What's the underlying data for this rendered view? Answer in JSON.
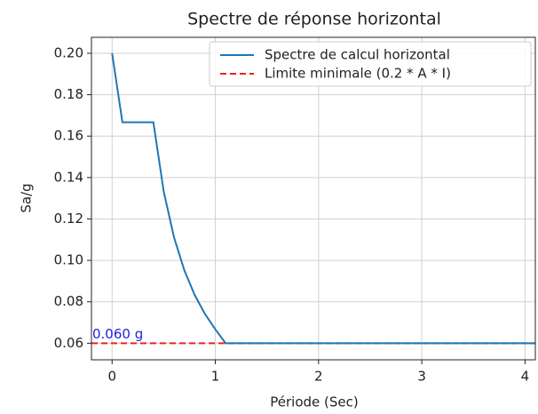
{
  "chart_data": {
    "type": "line",
    "title": "Spectre de réponse horizontal",
    "xlabel": "Période (Sec)",
    "ylabel": "Sa/g",
    "x": [
      0,
      0.1,
      0.4,
      0.5,
      0.6,
      0.7,
      0.8,
      0.9,
      1.0,
      1.1,
      4.1
    ],
    "series": [
      {
        "name": "Spectre de calcul horizontal",
        "color": "#1f77b4",
        "values": [
          0.2,
          0.1667,
          0.1667,
          0.1333,
          0.1111,
          0.0952,
          0.0833,
          0.0741,
          0.0667,
          0.06,
          0.06
        ]
      }
    ],
    "reference_line": {
      "name": "Limite minimale (0.2 * A * I)",
      "value": 0.06,
      "color": "#e8251f"
    },
    "annotation": {
      "text": "0.060 g",
      "x": -0.2,
      "y": 0.06,
      "color": "#2020e0"
    },
    "xlim": [
      -0.2,
      4.1
    ],
    "ylim": [
      0.052,
      0.2077
    ],
    "xticks": [
      0,
      1,
      2,
      3,
      4
    ],
    "yticks": [
      {
        "value": 0.06,
        "label": "0.06"
      },
      {
        "value": 0.08,
        "label": "0.08"
      },
      {
        "value": 0.1,
        "label": "0.10"
      },
      {
        "value": 0.12,
        "label": "0.12"
      },
      {
        "value": 0.14,
        "label": "0.14"
      },
      {
        "value": 0.16,
        "label": "0.16"
      },
      {
        "value": 0.18,
        "label": "0.18"
      },
      {
        "value": 0.2,
        "label": "0.20"
      }
    ],
    "grid": true,
    "legend": "upper right"
  }
}
